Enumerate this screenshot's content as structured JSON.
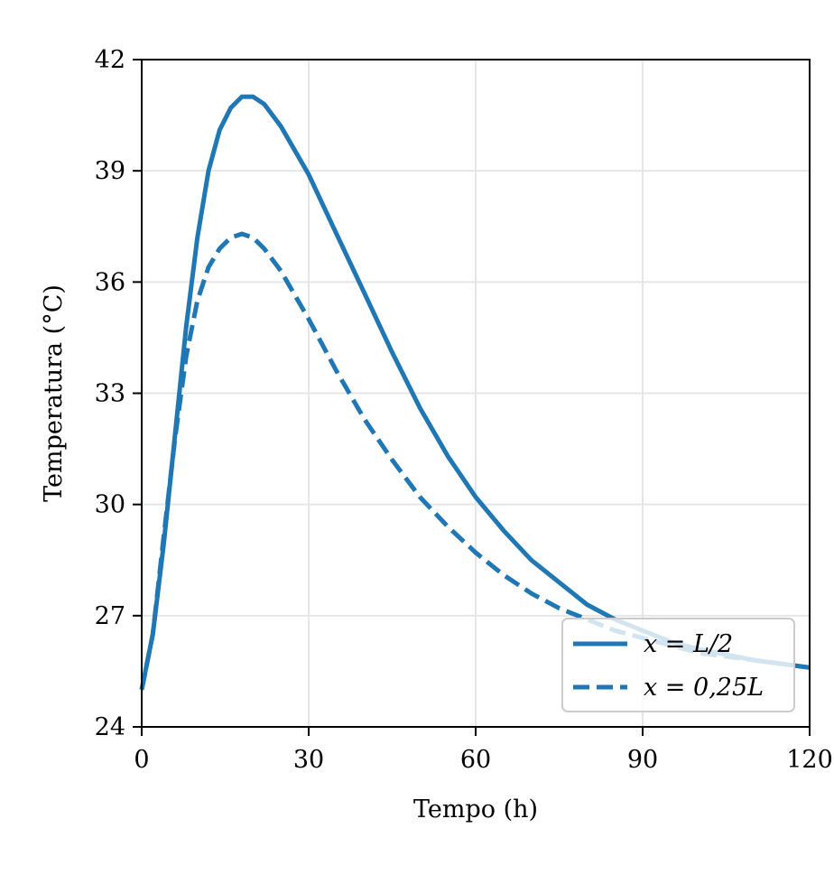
{
  "chart_data": {
    "type": "line",
    "title": "",
    "xlabel": "Tempo (h)",
    "ylabel": "Temperatura (°C)",
    "xlim": [
      0,
      120
    ],
    "ylim": [
      24,
      42
    ],
    "x_ticks": [
      0,
      30,
      60,
      90,
      120
    ],
    "x_tick_labels": [
      "0",
      "30",
      "60",
      "90",
      "120"
    ],
    "y_ticks": [
      24,
      27,
      30,
      33,
      36,
      39,
      42
    ],
    "y_tick_labels": [
      "24",
      "27",
      "30",
      "33",
      "36",
      "39",
      "42"
    ],
    "grid": true,
    "legend_position": "lower-right",
    "colors": {
      "series": "#1f77b4",
      "grid": "#e6e6e6",
      "axis": "#000000"
    },
    "series": [
      {
        "name": "x = L/2",
        "style": "solid",
        "x": [
          0,
          2,
          4,
          6,
          8,
          10,
          12,
          14,
          16,
          18,
          20,
          22,
          25,
          30,
          35,
          40,
          45,
          50,
          55,
          60,
          65,
          70,
          75,
          80,
          85,
          90,
          95,
          100,
          105,
          110,
          115,
          120
        ],
        "y": [
          25.0,
          26.5,
          29.0,
          31.9,
          34.8,
          37.2,
          39.0,
          40.1,
          40.7,
          41.0,
          41.0,
          40.8,
          40.2,
          38.9,
          37.3,
          35.7,
          34.1,
          32.6,
          31.3,
          30.2,
          29.3,
          28.5,
          27.9,
          27.3,
          26.9,
          26.6,
          26.3,
          26.1,
          25.95,
          25.8,
          25.7,
          25.6
        ]
      },
      {
        "name": "x = 0,25L",
        "style": "dashed",
        "x": [
          0,
          2,
          4,
          6,
          8,
          10,
          12,
          14,
          16,
          18,
          20,
          22,
          25,
          30,
          35,
          40,
          45,
          50,
          55,
          60,
          65,
          70,
          75,
          80,
          85,
          90,
          95,
          100,
          105,
          110,
          115,
          120
        ],
        "y": [
          25.0,
          26.5,
          29.2,
          31.8,
          34.0,
          35.5,
          36.4,
          36.9,
          37.2,
          37.3,
          37.2,
          36.9,
          36.3,
          35.0,
          33.6,
          32.3,
          31.2,
          30.2,
          29.4,
          28.7,
          28.1,
          27.6,
          27.2,
          26.9,
          26.6,
          26.4,
          26.2,
          26.0,
          25.9,
          25.8,
          25.7,
          25.6
        ]
      }
    ],
    "legend_entries": [
      "x = L/2",
      "x = 0,25L"
    ]
  }
}
